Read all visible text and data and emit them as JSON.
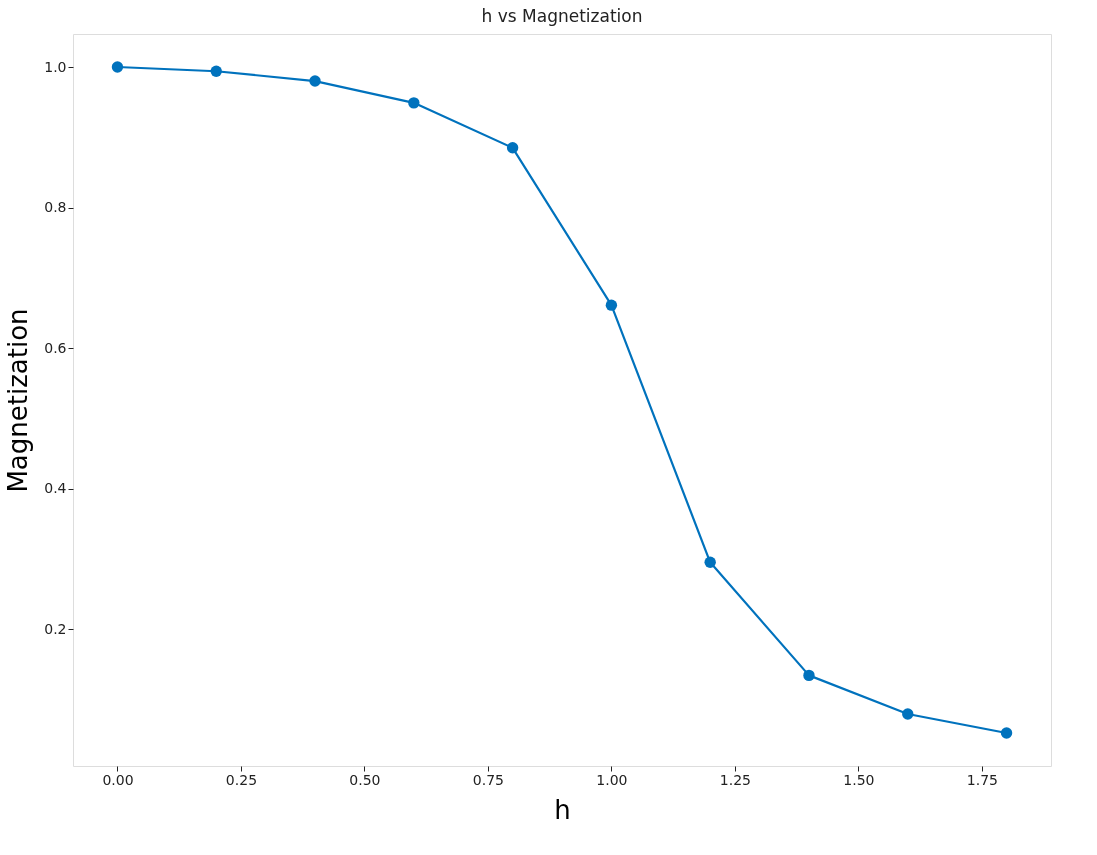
{
  "chart_data": {
    "type": "line",
    "title": "h vs Magnetization",
    "xlabel": "h",
    "ylabel": "Magnetization",
    "x": [
      0.0,
      0.2,
      0.4,
      0.6,
      0.8,
      1.0,
      1.2,
      1.4,
      1.6,
      1.8
    ],
    "series": [
      {
        "color": "#0072bd",
        "values": [
          1.0,
          0.994,
          0.98,
          0.949,
          0.885,
          0.661,
          0.295,
          0.134,
          0.079,
          0.052
        ]
      }
    ],
    "xlim": [
      -0.09,
      1.89
    ],
    "ylim": [
      0.005,
      1.047
    ],
    "xticks": [
      {
        "value": 0,
        "label": "0.00"
      },
      {
        "value": 0.25,
        "label": "0.25"
      },
      {
        "value": 0.5,
        "label": "0.50"
      },
      {
        "value": 0.75,
        "label": "0.75"
      },
      {
        "value": 1,
        "label": "1.00"
      },
      {
        "value": 1.25,
        "label": "1.25"
      },
      {
        "value": 1.5,
        "label": "1.50"
      },
      {
        "value": 1.75,
        "label": "1.75"
      }
    ],
    "yticks": [
      0.2,
      0.4,
      0.6,
      0.8,
      {
        "value": 1,
        "label": "1.0"
      }
    ],
    "marker": "circle",
    "line_style": "solid",
    "grid": false,
    "legend": false
  }
}
